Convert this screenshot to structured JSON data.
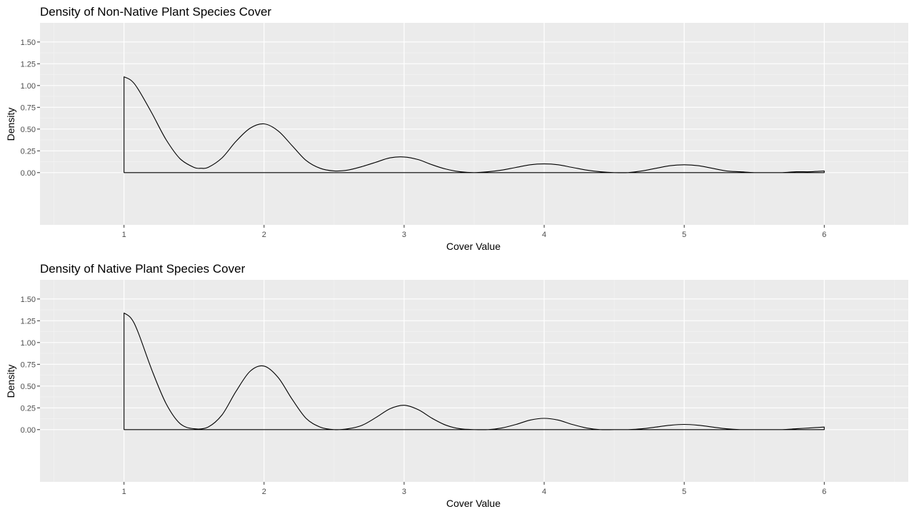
{
  "chart_data": [
    {
      "type": "area",
      "title": "Density of Non-Native Plant Species Cover",
      "xlabel": "Cover Value",
      "ylabel": "Density",
      "xlim": [
        0.4,
        6.6
      ],
      "ylim": [
        -0.6,
        1.72
      ],
      "x_ticks": [
        "1",
        "2",
        "3",
        "4",
        "5",
        "6"
      ],
      "y_ticks": [
        "0.00",
        "0.25",
        "0.50",
        "0.75",
        "1.00",
        "1.25",
        "1.50"
      ],
      "grid": true,
      "series": [
        {
          "x": [
            1.0,
            1.05,
            1.1,
            1.2,
            1.3,
            1.4,
            1.5,
            1.55,
            1.6,
            1.7,
            1.8,
            1.9,
            2.0,
            2.1,
            2.2,
            2.3,
            2.4,
            2.5,
            2.6,
            2.7,
            2.8,
            2.9,
            3.0,
            3.1,
            3.2,
            3.3,
            3.4,
            3.5,
            3.6,
            3.7,
            3.8,
            3.9,
            4.0,
            4.1,
            4.2,
            4.3,
            4.4,
            4.5,
            4.6,
            4.7,
            4.8,
            4.9,
            5.0,
            5.1,
            5.2,
            5.3,
            5.4,
            5.5,
            5.6,
            5.7,
            5.8,
            5.9,
            6.0
          ],
          "values": [
            1.1,
            1.06,
            0.96,
            0.68,
            0.38,
            0.16,
            0.06,
            0.05,
            0.06,
            0.17,
            0.36,
            0.51,
            0.56,
            0.48,
            0.31,
            0.14,
            0.05,
            0.02,
            0.03,
            0.07,
            0.12,
            0.17,
            0.18,
            0.15,
            0.09,
            0.04,
            0.01,
            0.0,
            0.01,
            0.03,
            0.06,
            0.09,
            0.1,
            0.09,
            0.06,
            0.03,
            0.01,
            0.0,
            0.0,
            0.02,
            0.05,
            0.08,
            0.09,
            0.08,
            0.05,
            0.02,
            0.01,
            0.0,
            0.0,
            0.0,
            0.01,
            0.01,
            0.02
          ]
        }
      ]
    },
    {
      "type": "area",
      "title": "Density of Native Plant Species Cover",
      "xlabel": "Cover Value",
      "ylabel": "Density",
      "xlim": [
        0.4,
        6.6
      ],
      "ylim": [
        -0.6,
        1.72
      ],
      "x_ticks": [
        "1",
        "2",
        "3",
        "4",
        "5",
        "6"
      ],
      "y_ticks": [
        "0.00",
        "0.25",
        "0.50",
        "0.75",
        "1.00",
        "1.25",
        "1.50"
      ],
      "grid": true,
      "series": [
        {
          "x": [
            1.0,
            1.05,
            1.1,
            1.2,
            1.3,
            1.4,
            1.5,
            1.6,
            1.7,
            1.8,
            1.9,
            2.0,
            2.1,
            2.2,
            2.3,
            2.4,
            2.5,
            2.6,
            2.7,
            2.8,
            2.9,
            3.0,
            3.1,
            3.2,
            3.3,
            3.4,
            3.5,
            3.6,
            3.7,
            3.8,
            3.9,
            4.0,
            4.1,
            4.2,
            4.3,
            4.4,
            4.5,
            4.6,
            4.7,
            4.8,
            4.9,
            5.0,
            5.1,
            5.2,
            5.3,
            5.4,
            5.5,
            5.6,
            5.7,
            5.8,
            5.9,
            6.0
          ],
          "values": [
            1.34,
            1.28,
            1.12,
            0.68,
            0.3,
            0.07,
            0.01,
            0.03,
            0.17,
            0.44,
            0.67,
            0.73,
            0.6,
            0.35,
            0.13,
            0.03,
            0.0,
            0.01,
            0.05,
            0.14,
            0.24,
            0.28,
            0.23,
            0.13,
            0.05,
            0.01,
            0.0,
            0.0,
            0.02,
            0.06,
            0.11,
            0.13,
            0.11,
            0.06,
            0.02,
            0.0,
            0.0,
            0.0,
            0.01,
            0.03,
            0.05,
            0.06,
            0.05,
            0.03,
            0.01,
            0.0,
            0.0,
            0.0,
            0.0,
            0.01,
            0.02,
            0.03
          ]
        }
      ]
    }
  ]
}
